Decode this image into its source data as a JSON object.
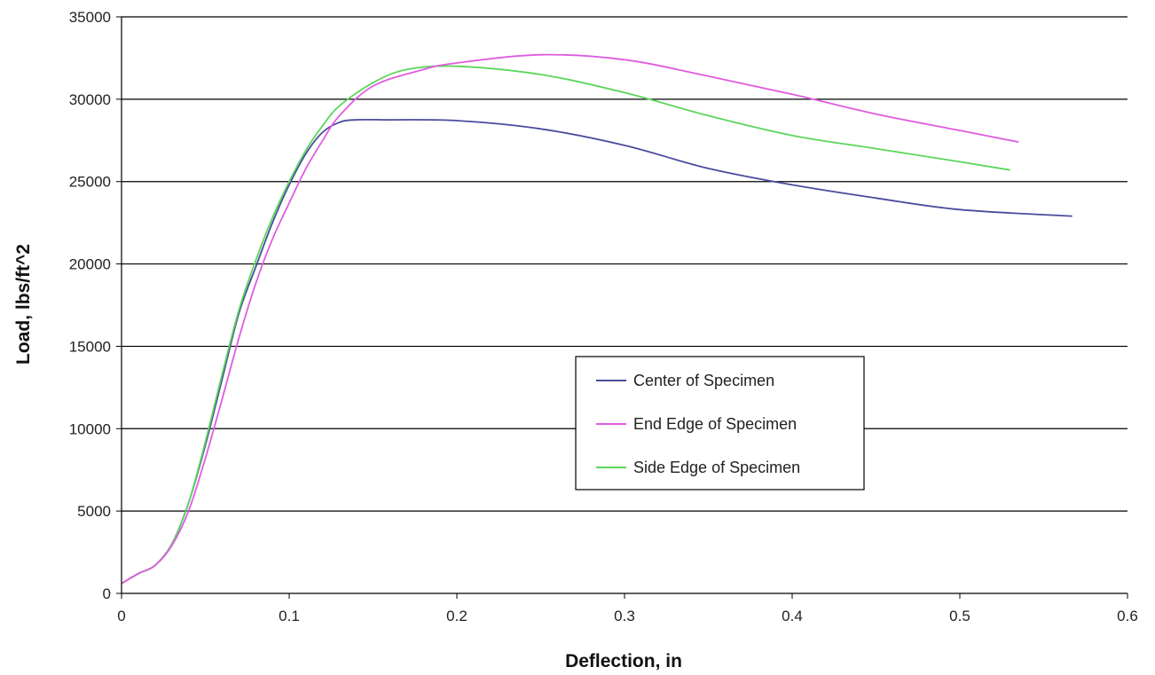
{
  "chart_data": {
    "type": "line",
    "title": "",
    "xlabel": "Deflection, in",
    "ylabel": "Load, lbs/ft^2",
    "xlim": [
      0,
      0.6
    ],
    "ylim": [
      0,
      35000
    ],
    "x_ticks": [
      "0",
      "0.1",
      "0.2",
      "0.3",
      "0.4",
      "0.5",
      "0.6"
    ],
    "y_ticks": [
      "0",
      "5000",
      "10000",
      "15000",
      "20000",
      "25000",
      "30000",
      "35000"
    ],
    "grid": "horizontal",
    "legend_position": "center-right",
    "series": [
      {
        "name": "Center of Specimen",
        "color": "#4b4c9c",
        "points": [
          [
            0,
            600
          ],
          [
            0.01,
            1200
          ],
          [
            0.02,
            1700
          ],
          [
            0.03,
            3000
          ],
          [
            0.04,
            5500
          ],
          [
            0.05,
            9000
          ],
          [
            0.06,
            13000
          ],
          [
            0.07,
            17000
          ],
          [
            0.08,
            19800
          ],
          [
            0.09,
            22500
          ],
          [
            0.1,
            24800
          ],
          [
            0.11,
            26700
          ],
          [
            0.12,
            28000
          ],
          [
            0.13,
            28600
          ],
          [
            0.14,
            28750
          ],
          [
            0.16,
            28750
          ],
          [
            0.2,
            28700
          ],
          [
            0.25,
            28200
          ],
          [
            0.3,
            27200
          ],
          [
            0.35,
            25800
          ],
          [
            0.4,
            24800
          ],
          [
            0.45,
            24000
          ],
          [
            0.5,
            23300
          ],
          [
            0.567,
            22900
          ]
        ]
      },
      {
        "name": "End Edge of Specimen",
        "color": "#e05ce0",
        "points": [
          [
            0,
            600
          ],
          [
            0.01,
            1200
          ],
          [
            0.02,
            1700
          ],
          [
            0.03,
            2900
          ],
          [
            0.04,
            5000
          ],
          [
            0.05,
            8200
          ],
          [
            0.06,
            11800
          ],
          [
            0.07,
            15500
          ],
          [
            0.08,
            18800
          ],
          [
            0.09,
            21500
          ],
          [
            0.1,
            23700
          ],
          [
            0.11,
            25800
          ],
          [
            0.12,
            27500
          ],
          [
            0.13,
            29000
          ],
          [
            0.15,
            30800
          ],
          [
            0.18,
            31800
          ],
          [
            0.2,
            32200
          ],
          [
            0.25,
            32700
          ],
          [
            0.3,
            32400
          ],
          [
            0.35,
            31400
          ],
          [
            0.4,
            30300
          ],
          [
            0.45,
            29100
          ],
          [
            0.5,
            28100
          ],
          [
            0.535,
            27400
          ]
        ]
      },
      {
        "name": "Side Edge of Specimen",
        "color": "#5cd65c",
        "points": [
          [
            0,
            600
          ],
          [
            0.01,
            1200
          ],
          [
            0.02,
            1700
          ],
          [
            0.03,
            3000
          ],
          [
            0.04,
            5500
          ],
          [
            0.05,
            9200
          ],
          [
            0.06,
            13300
          ],
          [
            0.07,
            17200
          ],
          [
            0.08,
            20200
          ],
          [
            0.09,
            22800
          ],
          [
            0.1,
            25000
          ],
          [
            0.11,
            26900
          ],
          [
            0.12,
            28400
          ],
          [
            0.13,
            29600
          ],
          [
            0.15,
            31000
          ],
          [
            0.17,
            31800
          ],
          [
            0.2,
            32000
          ],
          [
            0.25,
            31500
          ],
          [
            0.3,
            30400
          ],
          [
            0.35,
            29000
          ],
          [
            0.4,
            27800
          ],
          [
            0.45,
            27000
          ],
          [
            0.5,
            26200
          ],
          [
            0.53,
            25700
          ]
        ]
      }
    ]
  }
}
